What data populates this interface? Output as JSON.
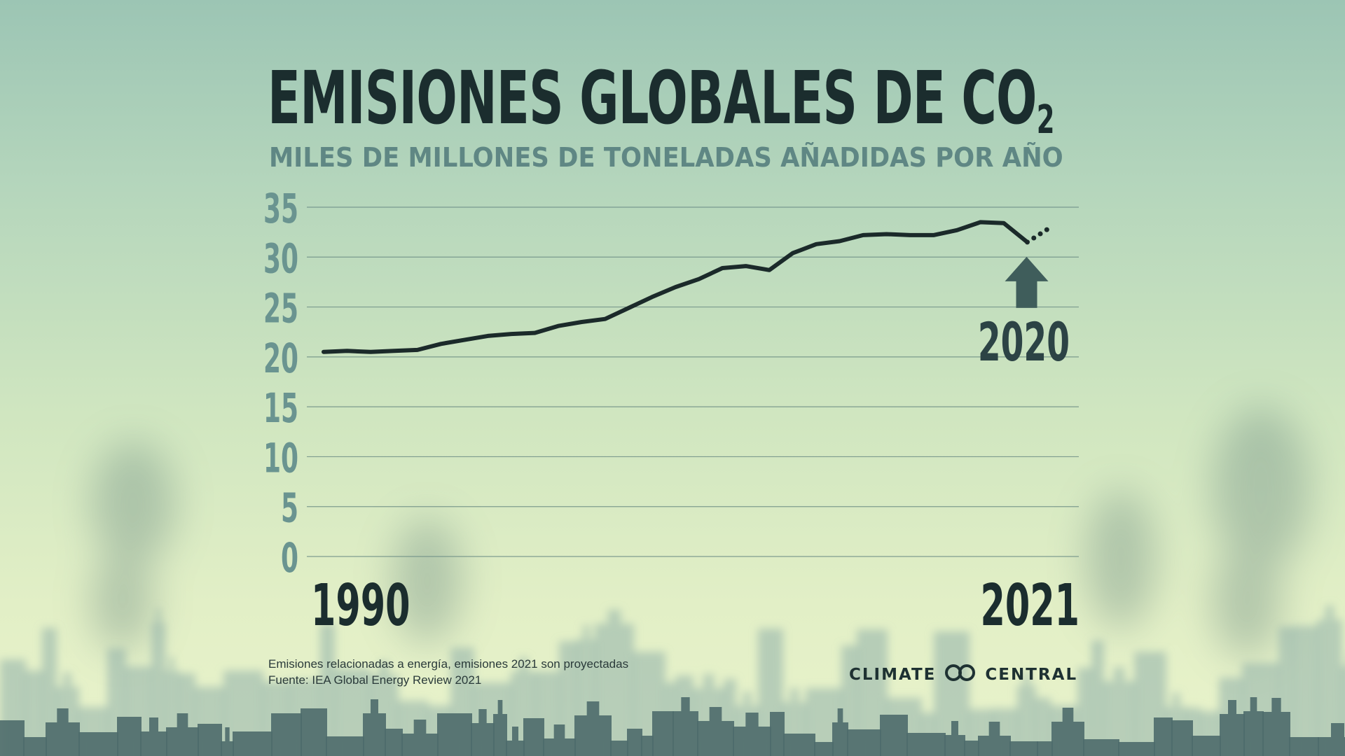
{
  "title": {
    "main": "EMISIONES GLOBALES DE CO",
    "subscript": "2"
  },
  "subtitle": "MILES DE MILLONES DE TONELADAS AÑADIDAS POR AÑO",
  "chart_data": {
    "type": "line",
    "title": "EMISIONES GLOBALES DE CO2",
    "subtitle": "MILES DE MILLONES DE TONELADAS AÑADIDAS POR AÑO",
    "xlabel": "",
    "ylabel": "",
    "x_tick_labels": [
      "1990",
      "2021"
    ],
    "y_ticks": [
      0,
      5,
      10,
      15,
      20,
      25,
      30,
      35
    ],
    "y_tick_labels": [
      "0",
      "5",
      "10",
      "15",
      "20",
      "25",
      "30",
      "35"
    ],
    "xlim": [
      1990,
      2021
    ],
    "ylim": [
      0,
      35
    ],
    "grid": true,
    "series": [
      {
        "style": "solid",
        "color": "#1b2a2a",
        "x": [
          1990,
          1991,
          1992,
          1993,
          1994,
          1995,
          1996,
          1997,
          1998,
          1999,
          2000,
          2001,
          2002,
          2003,
          2004,
          2005,
          2006,
          2007,
          2008,
          2009,
          2010,
          2011,
          2012,
          2013,
          2014,
          2015,
          2016,
          2017,
          2018,
          2019,
          2020
        ],
        "y": [
          20.5,
          20.6,
          20.5,
          20.6,
          20.7,
          21.3,
          21.7,
          22.1,
          22.3,
          22.4,
          23.1,
          23.5,
          23.8,
          24.9,
          26.0,
          27.0,
          27.8,
          28.9,
          29.1,
          28.7,
          30.4,
          31.3,
          31.6,
          32.2,
          32.3,
          32.2,
          32.2,
          32.7,
          33.5,
          33.4,
          31.5
        ]
      },
      {
        "style": "dotted",
        "color": "#1b2a2a",
        "x": [
          2020,
          2021
        ],
        "y": [
          31.5,
          33.0
        ]
      }
    ],
    "annotations": [
      {
        "text": "2020",
        "x": 2020,
        "y": 31.5,
        "marker": "up-arrow"
      }
    ]
  },
  "footnotes": [
    "Emisiones relacionadas a energía, emisiones 2021 son proyectadas",
    "Fuente: IEA Global Energy Review 2021"
  ],
  "logo": {
    "left": "CLIMATE",
    "right": "CENTRAL"
  },
  "colors": {
    "title": "#1b2d2e",
    "subtitle": "#5f8784",
    "tick_labels": "#6a9490",
    "grid": "#6f8f86",
    "line": "#1b2a2a",
    "arrow": "#3f5d5b",
    "skyline_front": "#4e6b6b",
    "skyline_back": "#8fb1aa"
  }
}
